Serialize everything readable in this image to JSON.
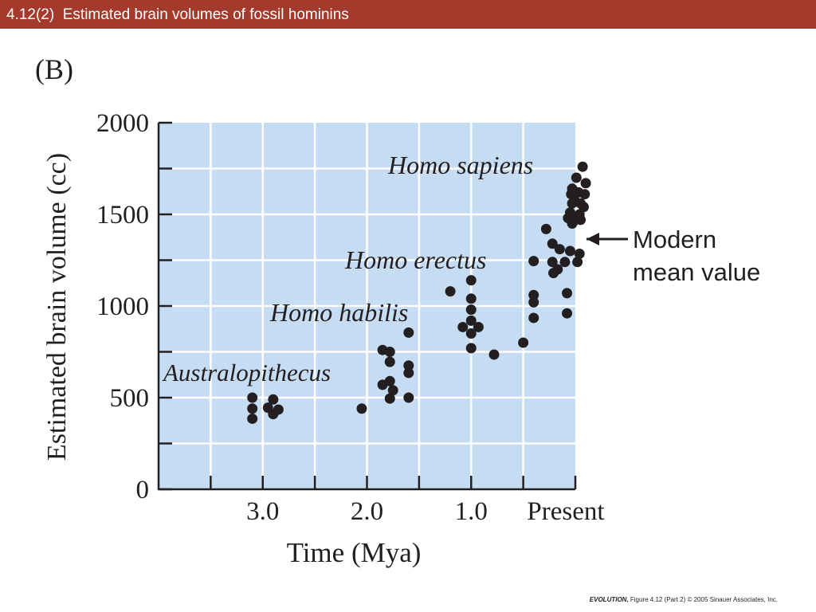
{
  "slide": {
    "title": "4.12(2)  Estimated brain volumes of fossil hominins",
    "panel_label": "(B)",
    "footer_book": "EVOLUTION,",
    "footer_rest": " Figure 4.12 (Part 2)  © 2005 Sinauer Associates, Inc."
  },
  "colors": {
    "title_bar": "#a33a2c",
    "plot_background": "#c6dcf3",
    "gridlines": "#ffffff",
    "points": "#231f20"
  },
  "chart_data": {
    "type": "scatter",
    "xlabel": "Time (Mya)",
    "ylabel": "Estimated brain volume (cc)",
    "xlim": [
      4.0,
      0.0
    ],
    "ylim": [
      0,
      2000
    ],
    "x_reversed": true,
    "x_ticks": [
      {
        "value": 3.0,
        "label": "3.0"
      },
      {
        "value": 2.0,
        "label": "2.0"
      },
      {
        "value": 1.0,
        "label": "1.0"
      },
      {
        "value": 0.0,
        "label": "Present"
      }
    ],
    "x_minor_ticks": [
      3.5,
      2.5,
      1.5,
      0.5
    ],
    "y_ticks": [
      {
        "value": 0,
        "label": "0"
      },
      {
        "value": 500,
        "label": "500"
      },
      {
        "value": 1000,
        "label": "1000"
      },
      {
        "value": 1500,
        "label": "1500"
      },
      {
        "value": 2000,
        "label": "2000"
      }
    ],
    "y_minor_ticks": [
      250,
      750,
      1250,
      1750
    ],
    "grid": true,
    "annotations": {
      "australopithecus": "Australopithecus",
      "homo_habilis": "Homo habilis",
      "homo_erectus": "Homo erectus",
      "homo_sapiens": "Homo sapiens",
      "modern_line1": "Modern",
      "modern_line2": "mean value",
      "modern_mean_value": 1350
    },
    "points": [
      [
        3.1,
        500
      ],
      [
        3.1,
        440
      ],
      [
        3.1,
        385
      ],
      [
        2.95,
        445
      ],
      [
        2.9,
        490
      ],
      [
        2.9,
        410
      ],
      [
        2.85,
        435
      ],
      [
        2.05,
        440
      ],
      [
        1.85,
        760
      ],
      [
        1.78,
        750
      ],
      [
        1.78,
        695
      ],
      [
        1.85,
        570
      ],
      [
        1.78,
        590
      ],
      [
        1.75,
        540
      ],
      [
        1.78,
        495
      ],
      [
        1.6,
        855
      ],
      [
        1.6,
        675
      ],
      [
        1.6,
        635
      ],
      [
        1.6,
        500
      ],
      [
        1.2,
        1080
      ],
      [
        1.0,
        1140
      ],
      [
        1.0,
        1040
      ],
      [
        1.0,
        980
      ],
      [
        1.0,
        920
      ],
      [
        1.08,
        885
      ],
      [
        0.93,
        885
      ],
      [
        1.0,
        850
      ],
      [
        1.0,
        770
      ],
      [
        0.78,
        735
      ],
      [
        0.5,
        800
      ],
      [
        0.4,
        1245
      ],
      [
        0.4,
        1060
      ],
      [
        0.4,
        1020
      ],
      [
        0.4,
        935
      ],
      [
        0.28,
        1420
      ],
      [
        0.22,
        1340
      ],
      [
        0.15,
        1310
      ],
      [
        0.22,
        1240
      ],
      [
        0.17,
        1200
      ],
      [
        0.21,
        1180
      ],
      [
        0.1,
        1240
      ],
      [
        0.05,
        1300
      ],
      [
        -0.02,
        1240
      ],
      [
        -0.04,
        1285
      ],
      [
        0.08,
        1070
      ],
      [
        0.08,
        960
      ],
      [
        -0.07,
        1760
      ],
      [
        -0.01,
        1700
      ],
      [
        -0.1,
        1670
      ],
      [
        0.03,
        1640
      ],
      [
        -0.03,
        1620
      ],
      [
        0.04,
        1610
      ],
      [
        -0.09,
        1610
      ],
      [
        0.0,
        1570
      ],
      [
        -0.05,
        1560
      ],
      [
        0.03,
        1560
      ],
      [
        -0.08,
        1540
      ],
      [
        0.05,
        1510
      ],
      [
        -0.04,
        1500
      ],
      [
        0.07,
        1480
      ],
      [
        0.0,
        1470
      ],
      [
        -0.05,
        1470
      ],
      [
        0.03,
        1450
      ]
    ]
  }
}
